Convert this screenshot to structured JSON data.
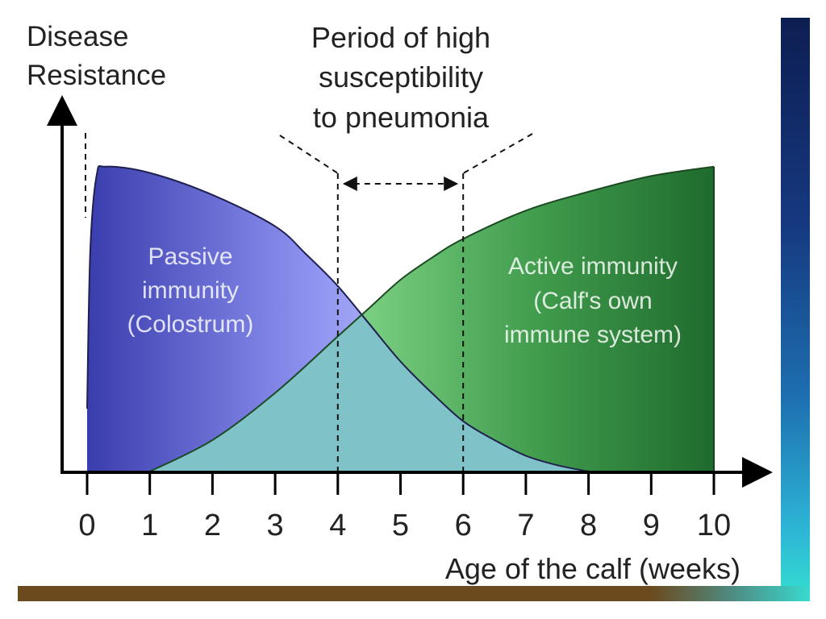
{
  "chart_data": {
    "type": "area",
    "title": "",
    "xlabel": "Age of the calf (weeks)",
    "ylabel": [
      "Disease",
      "Resistance"
    ],
    "xlim": [
      0,
      10
    ],
    "ylim": [
      0,
      1
    ],
    "x_ticks": [
      "0",
      "1",
      "2",
      "3",
      "4",
      "5",
      "6",
      "7",
      "8",
      "9",
      "10"
    ],
    "series": [
      {
        "name": "Passive immunity (Colostrum)",
        "label_lines": [
          "Passive",
          "immunity",
          "(Colostrum)"
        ],
        "x": [
          0,
          0.05,
          0.15,
          0.3,
          1,
          2,
          3,
          3.5,
          4,
          4.5,
          5,
          5.5,
          6,
          6.5,
          7,
          7.5,
          8
        ],
        "y": [
          0.2,
          0.7,
          0.94,
          0.97,
          0.95,
          0.88,
          0.78,
          0.69,
          0.59,
          0.47,
          0.35,
          0.25,
          0.16,
          0.1,
          0.05,
          0.02,
          0.0
        ],
        "color": "#5b5fc7"
      },
      {
        "name": "Active immunity (Calf's own immune system)",
        "label_lines": [
          "Active immunity",
          "(Calf's own",
          "immune system)"
        ],
        "x": [
          1,
          2,
          3,
          4,
          4.5,
          5,
          5.5,
          6,
          7,
          8,
          9,
          10
        ],
        "y": [
          0.0,
          0.1,
          0.25,
          0.43,
          0.52,
          0.61,
          0.68,
          0.74,
          0.83,
          0.89,
          0.94,
          0.97
        ],
        "color": "#3e9a47"
      }
    ],
    "annotations": [
      {
        "lines": [
          "Period of high",
          "susceptibility",
          "to pneumonia"
        ],
        "x_start": 4,
        "x_end": 6
      }
    ],
    "grid": false,
    "legend": "none"
  }
}
